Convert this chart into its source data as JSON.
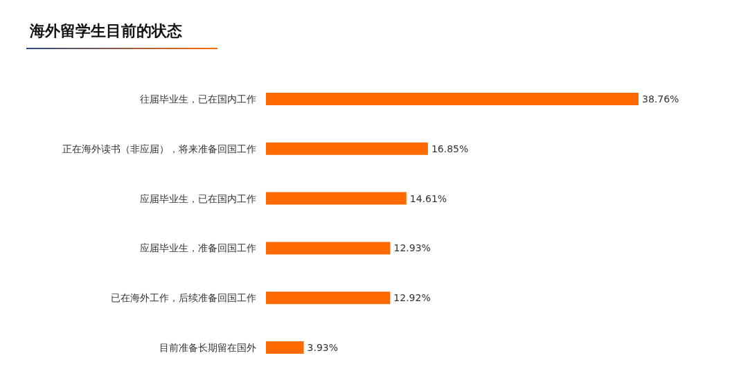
{
  "chart_data": {
    "type": "bar",
    "orientation": "horizontal",
    "title": "海外留学生目前的状态",
    "categories": [
      "往届毕业生，已在国内工作",
      "正在海外读书（非应届），将来准备回国工作",
      "应届毕业生，已在国内工作",
      "应届毕业生，准备回国工作",
      "已在海外工作，后续准备回国工作",
      "目前准备长期留在国外"
    ],
    "values": [
      38.76,
      16.85,
      14.61,
      12.93,
      12.92,
      3.93
    ],
    "value_labels": [
      "38.76%",
      "16.85%",
      "14.61%",
      "12.93%",
      "12.92%",
      "3.93%"
    ],
    "color": "#ff6a00"
  }
}
